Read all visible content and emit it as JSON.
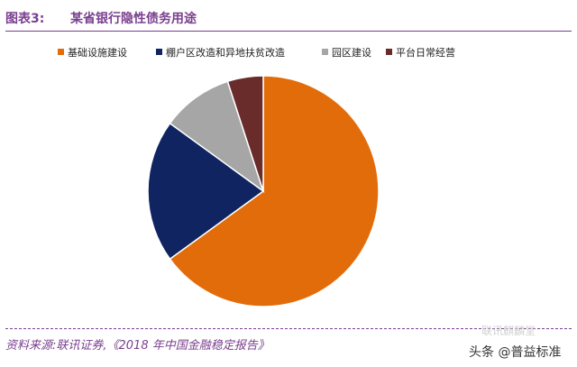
{
  "header": {
    "figure_label": "图表3:",
    "title": "某省银行隐性债务用途"
  },
  "chart_data": {
    "type": "pie",
    "title": "某省银行隐性债务用途",
    "legend_position": "top",
    "slices": [
      {
        "label": "基础设施建设",
        "value": 65,
        "color": "#e36c0a"
      },
      {
        "label": "棚户区改造和异地扶贫改造",
        "value": 20,
        "color": "#0f2460"
      },
      {
        "label": "园区建设",
        "value": 10,
        "color": "#a6a6a6"
      },
      {
        "label": "平台日常经营",
        "value": 5,
        "color": "#6a2b2b"
      }
    ]
  },
  "footer": {
    "source": "资料来源:联讯证券,《2018 年中国金融稳定报告》"
  },
  "watermark": {
    "top_text": "联讯麒麟堂",
    "main_text": "头条 @普益标准"
  }
}
